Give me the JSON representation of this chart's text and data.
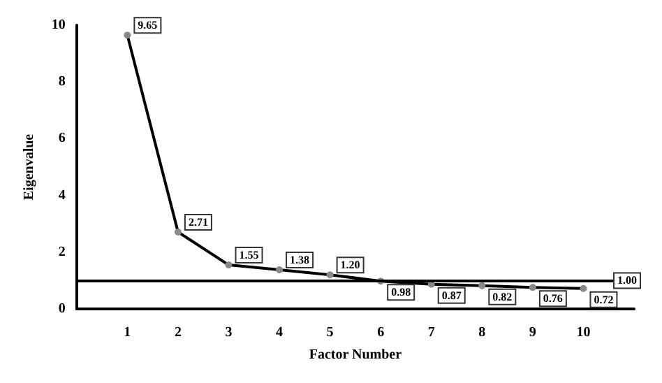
{
  "chart_data": {
    "type": "line",
    "xlabel": "Factor Number",
    "ylabel": "Eigenvalue",
    "x": [
      1,
      2,
      3,
      4,
      5,
      6,
      7,
      8,
      9,
      10
    ],
    "series": [
      {
        "color": "#000000",
        "values": [
          9.65,
          2.71,
          1.55,
          1.38,
          1.2,
          0.98,
          0.87,
          0.82,
          0.76,
          0.72
        ],
        "value_labels": [
          "9.65",
          "2.71",
          "1.55",
          "1.38",
          "1.20",
          "0.98",
          "0.87",
          "0.82",
          "0.76",
          "0.72"
        ]
      }
    ],
    "xlim": [
      0,
      11
    ],
    "xticks": [
      1,
      2,
      3,
      4,
      5,
      6,
      7,
      8,
      9,
      10
    ],
    "ylim": [
      0,
      10
    ],
    "yticks": [
      0,
      2,
      4,
      6,
      8,
      10
    ],
    "ref_lines": [
      {
        "axis": "y",
        "value": 1,
        "label": "1.00"
      }
    ],
    "grid": false,
    "marker": "circle",
    "line_style": "solid"
  }
}
